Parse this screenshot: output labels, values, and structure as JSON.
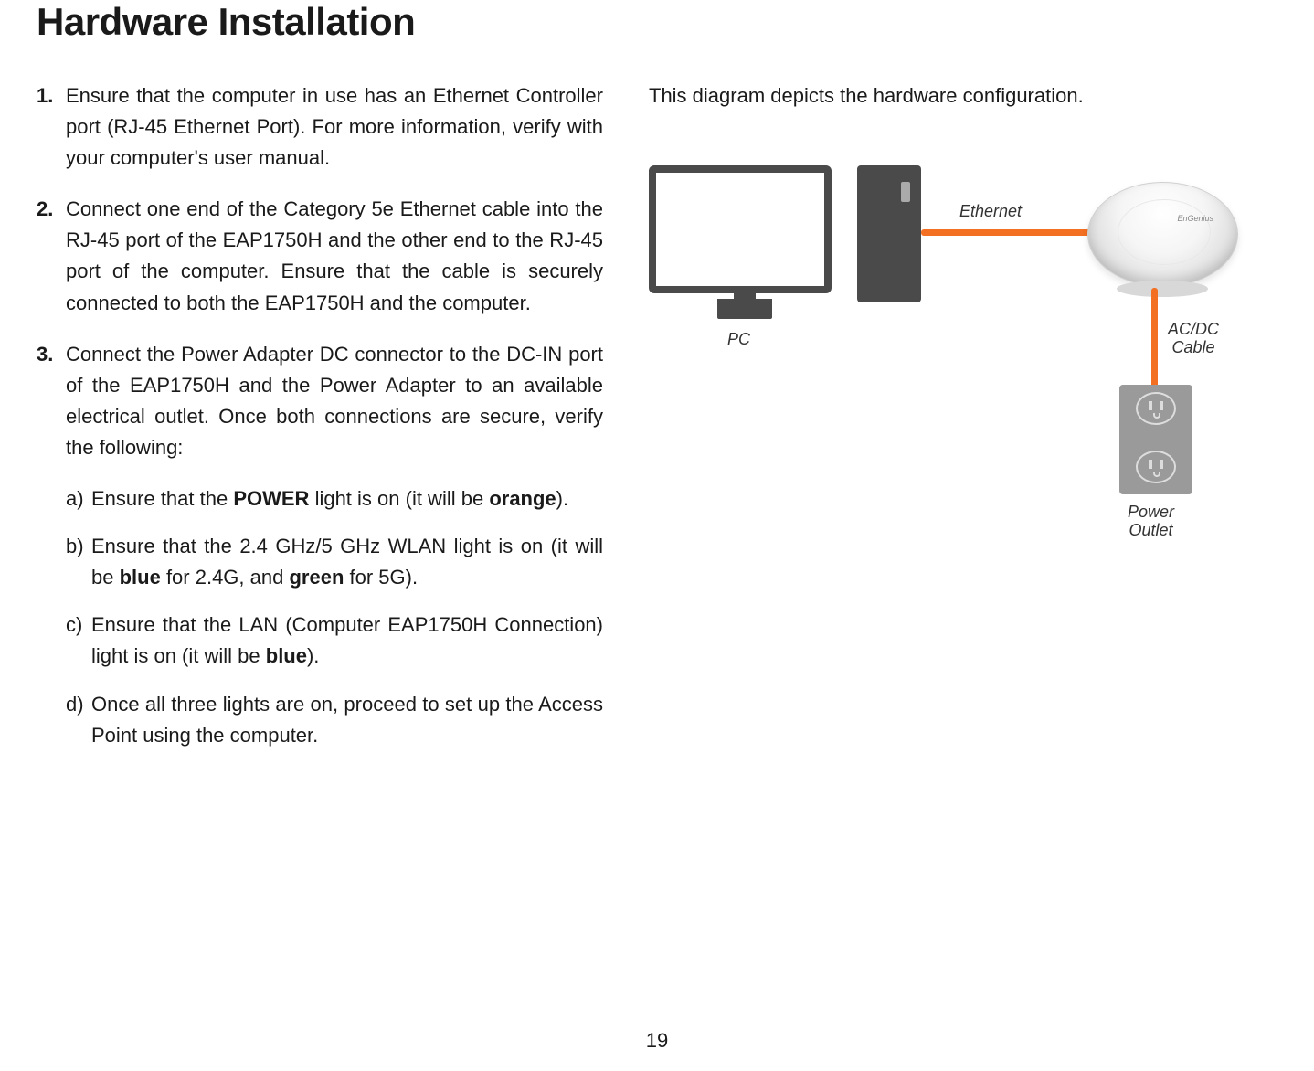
{
  "title": "Hardware Installation",
  "steps": {
    "s1": "Ensure that the computer in use has an Ethernet Controller port (RJ-45 Ethernet Port). For more information, verify with your computer's user manual.",
    "s2": "Connect one end of the Category 5e Ethernet cable into the RJ-45 port of the EAP1750H and the other end to the RJ-45 port of the computer. Ensure that the cable is securely connected to both the EAP1750H and the computer.",
    "s3": "Connect the Power Adapter DC connector to the DC-IN port of the EAP1750H and the Power Adapter to an available electrical outlet. Once both connections are secure, verify the following:"
  },
  "sub": {
    "a_pre": "Ensure that the ",
    "a_power": "POWER",
    "a_mid": " light is on (it will be ",
    "a_orange": "orange",
    "a_post": ").",
    "b_pre": "Ensure that the 2.4 GHz/5 GHz WLAN light is on (it will be ",
    "b_blue": "blue",
    "b_mid": " for 2.4G, and ",
    "b_green": "green",
    "b_post": " for 5G).",
    "c_pre": "Ensure that the LAN (Computer EAP1750H Connection) light is on (it will be ",
    "c_blue": "blue",
    "c_post": ").",
    "d": "Once all three lights are on, proceed to set up the Access Point using the computer."
  },
  "diagram": {
    "intro": "This diagram depicts the hardware configuration.",
    "pc": "PC",
    "ethernet": "Ethernet",
    "acdc": "AC/DC\nCable",
    "power": "Power\nOutlet",
    "cable_color": "#f36f21",
    "device_color": "#4a4a4a",
    "outlet_color": "#9a9a9a"
  },
  "page_number": "19"
}
